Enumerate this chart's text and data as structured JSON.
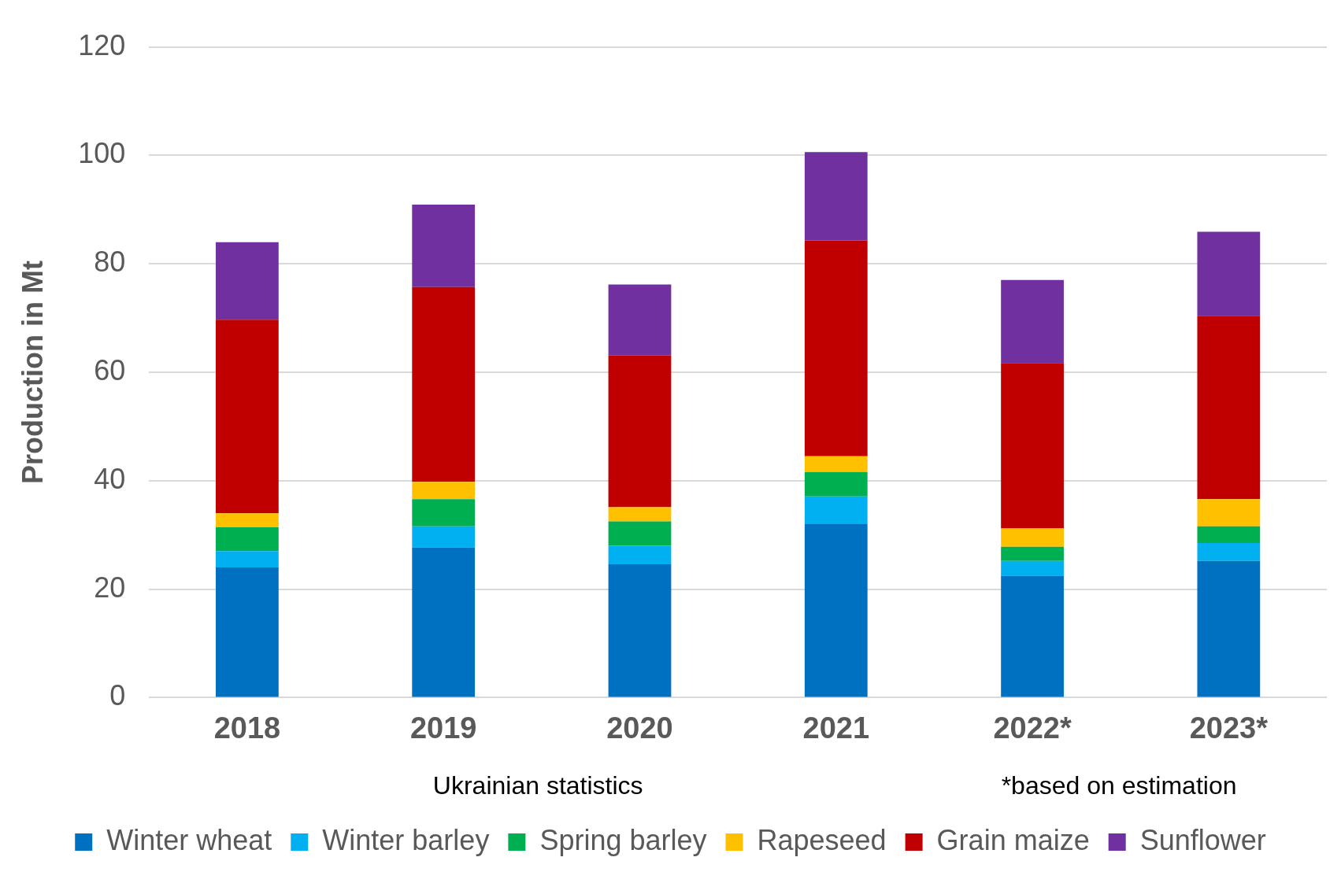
{
  "chart_data": {
    "type": "bar",
    "stacked": true,
    "ylabel": "Production in Mt",
    "categories": [
      "2018",
      "2019",
      "2020",
      "2021",
      "2022*",
      "2023*"
    ],
    "series": [
      {
        "name": "Winter wheat",
        "color": "#0070c0",
        "values": [
          24.0,
          27.7,
          24.6,
          32.0,
          22.5,
          25.2
        ]
      },
      {
        "name": "Winter barley",
        "color": "#00b0f0",
        "values": [
          3.0,
          3.9,
          3.4,
          5.1,
          2.7,
          3.3
        ]
      },
      {
        "name": "Spring barley",
        "color": "#00b050",
        "values": [
          4.4,
          5.0,
          4.5,
          4.5,
          2.6,
          3.1
        ]
      },
      {
        "name": "Rapeseed",
        "color": "#ffc000",
        "values": [
          2.6,
          3.2,
          2.6,
          2.9,
          3.4,
          5.0
        ]
      },
      {
        "name": "Grain maize",
        "color": "#c00000",
        "values": [
          35.7,
          35.9,
          28.0,
          39.8,
          30.5,
          33.8
        ]
      },
      {
        "name": "Sunflower",
        "color": "#7030a0",
        "values": [
          14.3,
          15.2,
          13.1,
          16.3,
          15.3,
          15.5
        ]
      }
    ],
    "ylim": [
      0,
      120
    ],
    "yticks": [
      0,
      20,
      40,
      60,
      80,
      100,
      120
    ],
    "grid": "y",
    "legend": "bottom",
    "annotations": [
      "Ukrainian statistics",
      "*based on estimation"
    ]
  }
}
